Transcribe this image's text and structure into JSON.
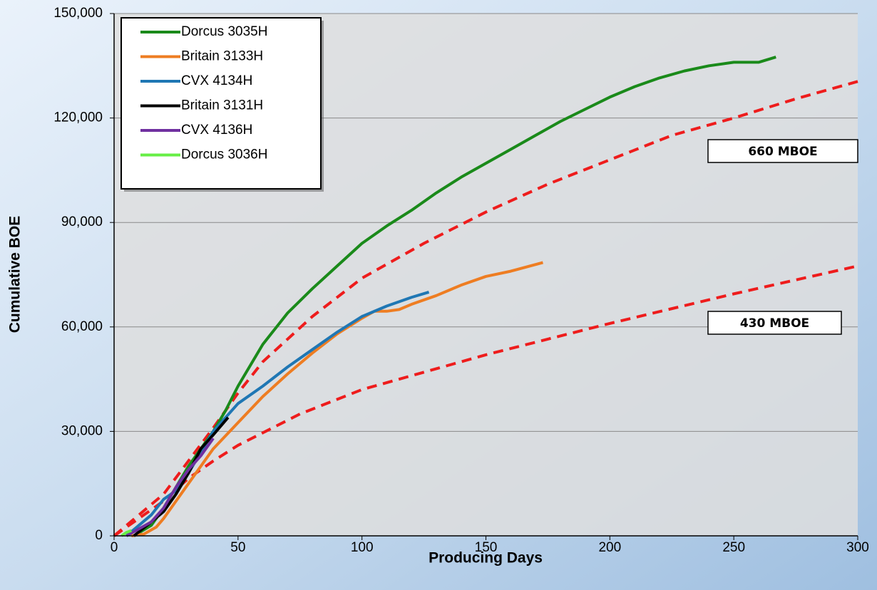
{
  "chart_data": {
    "type": "line",
    "xlabel": "Producing Days",
    "ylabel": "Cumulative BOE",
    "xlim": [
      0,
      300
    ],
    "ylim": [
      0,
      150000
    ],
    "xticks": [
      0,
      50,
      100,
      150,
      200,
      250,
      300
    ],
    "yticks": [
      0,
      {
        "value": 30000,
        "label": "30,000"
      },
      {
        "value": 60000,
        "label": "60,000"
      },
      {
        "value": 90000,
        "label": "90,000"
      },
      {
        "value": 120000,
        "label": "120,000"
      },
      {
        "value": 150000,
        "label": "150,000"
      }
    ],
    "grid": true,
    "legend": "upper left",
    "series": [
      {
        "name": "Dorcus 3035H",
        "color": "#1a8a1a",
        "x": [
          8,
          15,
          20,
          25,
          30,
          40,
          45,
          50,
          60,
          70,
          80,
          90,
          100,
          110,
          120,
          130,
          140,
          150,
          160,
          170,
          180,
          190,
          200,
          210,
          220,
          230,
          240,
          250,
          260,
          267
        ],
        "values": [
          0,
          3000,
          8000,
          14000,
          20000,
          30000,
          36000,
          43000,
          55000,
          64000,
          71000,
          77500,
          84000,
          89000,
          93500,
          98500,
          103000,
          107000,
          111000,
          115000,
          119000,
          122500,
          126000,
          129000,
          131500,
          133500,
          135000,
          136000,
          136000,
          137500
        ]
      },
      {
        "name": "Britain 3133H",
        "color": "#ee7d22",
        "x": [
          7,
          12,
          17,
          20,
          25,
          30,
          40,
          50,
          60,
          70,
          80,
          90,
          100,
          105,
          110,
          115,
          120,
          130,
          140,
          150,
          160,
          173
        ],
        "values": [
          0,
          500,
          2500,
          5000,
          10000,
          15000,
          25000,
          32500,
          40000,
          46500,
          52500,
          58000,
          62500,
          64500,
          64500,
          65000,
          66500,
          69000,
          72000,
          74500,
          76000,
          78500
        ]
      },
      {
        "name": "CVX 4134H",
        "color": "#1f77b4",
        "x": [
          5,
          10,
          15,
          20,
          25,
          30,
          40,
          50,
          60,
          70,
          80,
          90,
          100,
          110,
          120,
          127
        ],
        "values": [
          0,
          3000,
          6000,
          10500,
          13000,
          18000,
          30000,
          38000,
          43000,
          48500,
          53500,
          58500,
          63000,
          66000,
          68500,
          70000
        ]
      },
      {
        "name": "Britain 3131H",
        "color": "#000000",
        "x": [
          8,
          15,
          20,
          25,
          30,
          35,
          40,
          46
        ],
        "values": [
          0,
          4000,
          7000,
          12000,
          18000,
          25000,
          29000,
          34000
        ]
      },
      {
        "name": "CVX 4136H",
        "color": "#7030a0",
        "x": [
          5,
          10,
          15,
          20,
          25,
          30,
          35,
          40
        ],
        "values": [
          0,
          2000,
          4000,
          8000,
          14000,
          19000,
          23000,
          28000
        ]
      },
      {
        "name": "Dorcus 3036H",
        "color": "#66ee44",
        "x": [
          3,
          5,
          7
        ],
        "values": [
          0,
          1000,
          1500
        ]
      }
    ],
    "type_curves": [
      {
        "label": "660 MBOE",
        "color": "#ee1c1c",
        "x": [
          0,
          20,
          40,
          50,
          60,
          80,
          100,
          125,
          150,
          175,
          200,
          225,
          250,
          275,
          300
        ],
        "values": [
          0,
          12000,
          31000,
          41000,
          50000,
          63000,
          74000,
          84000,
          93000,
          101000,
          108000,
          115000,
          120000,
          125500,
          130500
        ]
      },
      {
        "label": "430 MBOE",
        "color": "#ee1c1c",
        "x": [
          0,
          20,
          30,
          40,
          50,
          75,
          100,
          150,
          200,
          250,
          300
        ],
        "values": [
          0,
          10000,
          16500,
          21500,
          26000,
          35000,
          42000,
          52000,
          61000,
          69500,
          77500
        ]
      }
    ]
  }
}
